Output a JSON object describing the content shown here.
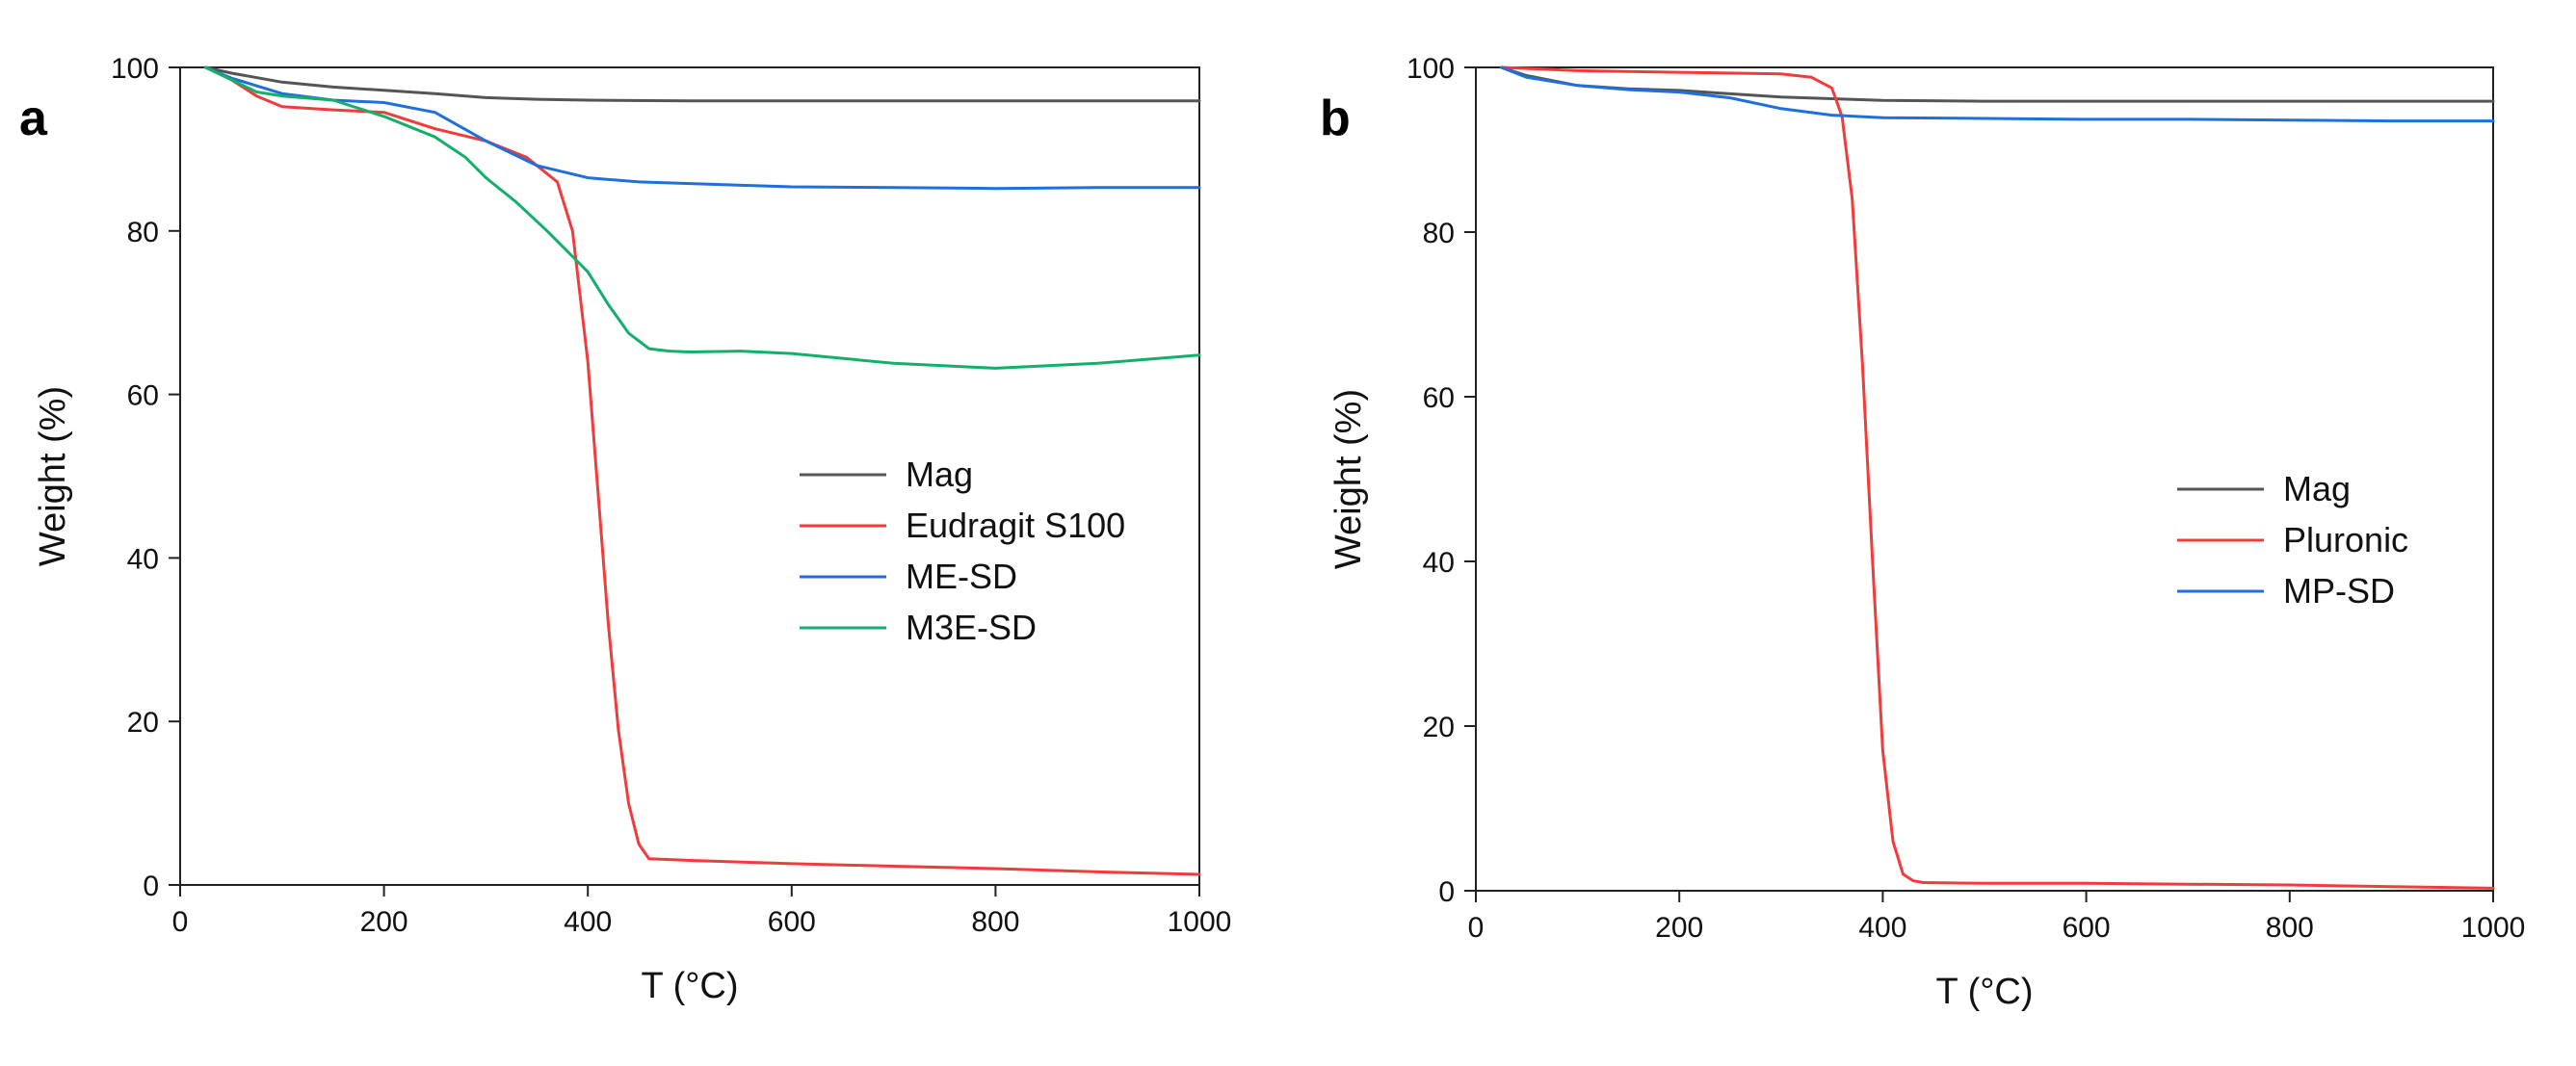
{
  "chart_data": [
    {
      "type": "line",
      "panel_label": "a",
      "xlabel": "T (°C)",
      "ylabel": "Weight (%)",
      "xlim": [
        0,
        1000
      ],
      "ylim": [
        0,
        100
      ],
      "xticks": [
        0,
        200,
        400,
        600,
        800,
        1000
      ],
      "yticks": [
        0,
        20,
        40,
        60,
        80,
        100
      ],
      "legend_position": "center-right",
      "series": [
        {
          "name": "Mag",
          "color": "#555555",
          "x": [
            25,
            50,
            100,
            150,
            200,
            250,
            300,
            350,
            400,
            500,
            600,
            700,
            800,
            900,
            1000
          ],
          "y": [
            100,
            99.3,
            98.2,
            97.6,
            97.2,
            96.8,
            96.3,
            96.1,
            96.0,
            95.9,
            95.9,
            95.9,
            95.9,
            95.9,
            95.9
          ]
        },
        {
          "name": "Eudragit S100",
          "color": "#f03c3c",
          "x": [
            25,
            50,
            75,
            100,
            150,
            200,
            250,
            300,
            340,
            370,
            385,
            400,
            410,
            420,
            430,
            440,
            450,
            460,
            500,
            600,
            700,
            800,
            900,
            1000
          ],
          "y": [
            100,
            98.5,
            96.5,
            95.2,
            94.8,
            94.5,
            92.5,
            91.0,
            89.0,
            86.0,
            80.0,
            64.0,
            48.0,
            32.0,
            19.0,
            10.0,
            5.0,
            3.2,
            3.0,
            2.6,
            2.3,
            2.0,
            1.6,
            1.3
          ]
        },
        {
          "name": "ME-SD",
          "color": "#1f6fdc",
          "x": [
            25,
            50,
            100,
            150,
            200,
            250,
            300,
            350,
            400,
            450,
            500,
            600,
            700,
            800,
            900,
            1000
          ],
          "y": [
            100,
            98.7,
            96.8,
            96.0,
            95.7,
            94.5,
            91.0,
            88.0,
            86.5,
            86.0,
            85.8,
            85.4,
            85.3,
            85.2,
            85.3,
            85.3
          ]
        },
        {
          "name": "M3E-SD",
          "color": "#14b06b",
          "x": [
            25,
            50,
            75,
            100,
            150,
            200,
            250,
            280,
            300,
            330,
            360,
            380,
            400,
            420,
            440,
            460,
            480,
            500,
            550,
            600,
            700,
            800,
            900,
            1000
          ],
          "y": [
            100,
            98.5,
            97.0,
            96.5,
            96.0,
            94.0,
            91.5,
            89.0,
            86.5,
            83.5,
            80.0,
            77.5,
            75.0,
            71.0,
            67.5,
            65.6,
            65.3,
            65.2,
            65.3,
            65.0,
            63.8,
            63.2,
            63.8,
            64.8
          ]
        }
      ]
    },
    {
      "type": "line",
      "panel_label": "b",
      "xlabel": "T (°C)",
      "ylabel": "Weight (%)",
      "xlim": [
        0,
        1000
      ],
      "ylim": [
        0,
        100
      ],
      "xticks": [
        0,
        200,
        400,
        600,
        800,
        1000
      ],
      "yticks": [
        0,
        20,
        40,
        60,
        80,
        100
      ],
      "legend_position": "center-right",
      "series": [
        {
          "name": "Mag",
          "color": "#555555",
          "x": [
            25,
            50,
            100,
            150,
            200,
            250,
            300,
            350,
            400,
            500,
            600,
            700,
            800,
            900,
            1000
          ],
          "y": [
            100,
            99.0,
            97.8,
            97.4,
            97.2,
            96.8,
            96.4,
            96.2,
            96.0,
            95.9,
            95.9,
            95.9,
            95.9,
            95.9,
            95.9
          ]
        },
        {
          "name": "Pluronic",
          "color": "#f03c3c",
          "x": [
            25,
            100,
            200,
            300,
            330,
            350,
            360,
            370,
            380,
            390,
            400,
            410,
            420,
            430,
            440,
            500,
            600,
            700,
            800,
            900,
            1000
          ],
          "y": [
            100,
            99.6,
            99.4,
            99.2,
            98.8,
            97.5,
            94.0,
            84.0,
            64.0,
            40.0,
            17.0,
            6.0,
            2.0,
            1.2,
            1.0,
            0.9,
            0.9,
            0.8,
            0.7,
            0.5,
            0.3
          ]
        },
        {
          "name": "MP-SD",
          "color": "#1f6fdc",
          "x": [
            25,
            50,
            100,
            150,
            200,
            250,
            300,
            350,
            400,
            500,
            600,
            700,
            800,
            900,
            1000
          ],
          "y": [
            100,
            98.8,
            97.8,
            97.3,
            97.0,
            96.3,
            95.0,
            94.2,
            93.9,
            93.8,
            93.7,
            93.7,
            93.6,
            93.5,
            93.5
          ]
        }
      ]
    }
  ]
}
